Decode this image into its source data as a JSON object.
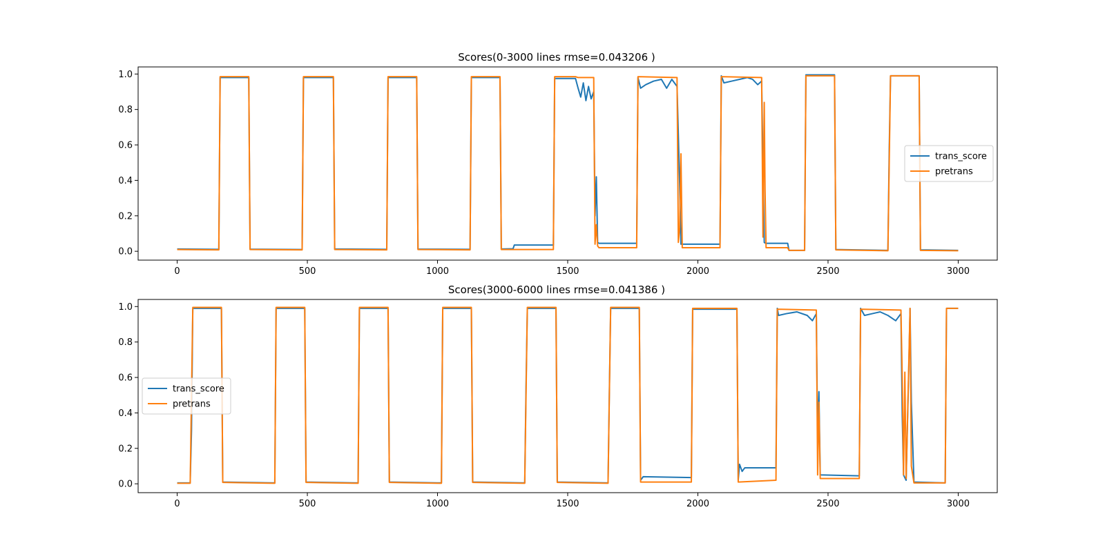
{
  "chart_data": [
    {
      "type": "line",
      "title": "Scores(0-3000 lines rmse=0.043206 )",
      "xlim": [
        -150,
        3150
      ],
      "ylim": [
        -0.05,
        1.04
      ],
      "xticks": [
        0,
        500,
        1000,
        1500,
        2000,
        2500,
        3000
      ],
      "yticks": [
        0.0,
        0.2,
        0.4,
        0.6,
        0.8,
        1.0
      ],
      "ytick_labels": [
        "0.0",
        "0.2",
        "0.4",
        "0.6",
        "0.8",
        "1.0"
      ],
      "legend_position": "center-right",
      "series": [
        {
          "name": "trans_score",
          "color": "#1f77b4",
          "points": [
            [
              0,
              0.013
            ],
            [
              160,
              0.011
            ],
            [
              165,
              0.98
            ],
            [
              275,
              0.98
            ],
            [
              280,
              0.012
            ],
            [
              480,
              0.01
            ],
            [
              485,
              0.98
            ],
            [
              600,
              0.98
            ],
            [
              605,
              0.013
            ],
            [
              805,
              0.011
            ],
            [
              810,
              0.98
            ],
            [
              920,
              0.98
            ],
            [
              925,
              0.012
            ],
            [
              1125,
              0.011
            ],
            [
              1130,
              0.98
            ],
            [
              1240,
              0.98
            ],
            [
              1245,
              0.013
            ],
            [
              1290,
              0.014
            ],
            [
              1295,
              0.035
            ],
            [
              1445,
              0.035
            ],
            [
              1450,
              0.975
            ],
            [
              1530,
              0.975
            ],
            [
              1540,
              0.92
            ],
            [
              1550,
              0.87
            ],
            [
              1560,
              0.95
            ],
            [
              1570,
              0.85
            ],
            [
              1580,
              0.93
            ],
            [
              1590,
              0.86
            ],
            [
              1600,
              0.9
            ],
            [
              1605,
              0.2
            ],
            [
              1610,
              0.42
            ],
            [
              1615,
              0.05
            ],
            [
              1620,
              0.045
            ],
            [
              1765,
              0.045
            ],
            [
              1770,
              0.98
            ],
            [
              1780,
              0.92
            ],
            [
              1800,
              0.94
            ],
            [
              1830,
              0.96
            ],
            [
              1860,
              0.97
            ],
            [
              1880,
              0.92
            ],
            [
              1900,
              0.97
            ],
            [
              1920,
              0.93
            ],
            [
              1930,
              0.38
            ],
            [
              1935,
              0.04
            ],
            [
              2085,
              0.04
            ],
            [
              2090,
              0.99
            ],
            [
              2100,
              0.95
            ],
            [
              2130,
              0.96
            ],
            [
              2160,
              0.97
            ],
            [
              2190,
              0.98
            ],
            [
              2210,
              0.97
            ],
            [
              2230,
              0.94
            ],
            [
              2245,
              0.96
            ],
            [
              2250,
              0.48
            ],
            [
              2255,
              0.05
            ],
            [
              2260,
              0.045
            ],
            [
              2345,
              0.045
            ],
            [
              2350,
              0.005
            ],
            [
              2410,
              0.005
            ],
            [
              2415,
              0.995
            ],
            [
              2525,
              0.995
            ],
            [
              2530,
              0.01
            ],
            [
              2730,
              0.005
            ],
            [
              2735,
              0.57
            ],
            [
              2740,
              0.99
            ],
            [
              2850,
              0.99
            ],
            [
              2855,
              0.008
            ],
            [
              3000,
              0.005
            ]
          ]
        },
        {
          "name": "pretrans",
          "color": "#ff7f0e",
          "points": [
            [
              0,
              0.01
            ],
            [
              160,
              0.008
            ],
            [
              165,
              0.985
            ],
            [
              275,
              0.985
            ],
            [
              280,
              0.01
            ],
            [
              480,
              0.008
            ],
            [
              485,
              0.985
            ],
            [
              600,
              0.985
            ],
            [
              605,
              0.01
            ],
            [
              805,
              0.008
            ],
            [
              810,
              0.985
            ],
            [
              920,
              0.985
            ],
            [
              925,
              0.01
            ],
            [
              1125,
              0.008
            ],
            [
              1130,
              0.985
            ],
            [
              1240,
              0.985
            ],
            [
              1245,
              0.01
            ],
            [
              1445,
              0.01
            ],
            [
              1450,
              0.985
            ],
            [
              1530,
              0.985
            ],
            [
              1540,
              0.98
            ],
            [
              1600,
              0.98
            ],
            [
              1605,
              0.04
            ],
            [
              1610,
              0.15
            ],
            [
              1615,
              0.03
            ],
            [
              1620,
              0.02
            ],
            [
              1765,
              0.02
            ],
            [
              1770,
              0.985
            ],
            [
              1920,
              0.98
            ],
            [
              1925,
              0.05
            ],
            [
              1930,
              0.13
            ],
            [
              1935,
              0.55
            ],
            [
              1940,
              0.02
            ],
            [
              2085,
              0.02
            ],
            [
              2090,
              0.985
            ],
            [
              2245,
              0.98
            ],
            [
              2250,
              0.08
            ],
            [
              2255,
              0.84
            ],
            [
              2258,
              0.35
            ],
            [
              2262,
              0.02
            ],
            [
              2345,
              0.02
            ],
            [
              2350,
              0.005
            ],
            [
              2410,
              0.005
            ],
            [
              2415,
              0.99
            ],
            [
              2525,
              0.99
            ],
            [
              2530,
              0.008
            ],
            [
              2730,
              0.003
            ],
            [
              2740,
              0.99
            ],
            [
              2850,
              0.99
            ],
            [
              2855,
              0.005
            ],
            [
              3000,
              0.003
            ]
          ]
        }
      ]
    },
    {
      "type": "line",
      "title": "Scores(3000-6000 lines rmse=0.041386 )",
      "xlim": [
        -150,
        3150
      ],
      "ylim": [
        -0.05,
        1.04
      ],
      "xticks": [
        0,
        500,
        1000,
        1500,
        2000,
        2500,
        3000
      ],
      "yticks": [
        0.0,
        0.2,
        0.4,
        0.6,
        0.8,
        1.0
      ],
      "ytick_labels": [
        "0.0",
        "0.2",
        "0.4",
        "0.6",
        "0.8",
        "1.0"
      ],
      "legend_position": "center-left",
      "series": [
        {
          "name": "trans_score",
          "color": "#1f77b4",
          "points": [
            [
              0,
              0.005
            ],
            [
              50,
              0.005
            ],
            [
              55,
              0.3
            ],
            [
              60,
              0.99
            ],
            [
              170,
              0.99
            ],
            [
              175,
              0.01
            ],
            [
              375,
              0.005
            ],
            [
              380,
              0.99
            ],
            [
              490,
              0.99
            ],
            [
              495,
              0.01
            ],
            [
              695,
              0.005
            ],
            [
              700,
              0.99
            ],
            [
              810,
              0.99
            ],
            [
              815,
              0.01
            ],
            [
              1015,
              0.005
            ],
            [
              1020,
              0.99
            ],
            [
              1130,
              0.99
            ],
            [
              1135,
              0.01
            ],
            [
              1335,
              0.005
            ],
            [
              1340,
              0.55
            ],
            [
              1345,
              0.99
            ],
            [
              1455,
              0.99
            ],
            [
              1460,
              0.01
            ],
            [
              1655,
              0.005
            ],
            [
              1660,
              0.52
            ],
            [
              1665,
              0.99
            ],
            [
              1775,
              0.99
            ],
            [
              1780,
              0.02
            ],
            [
              1790,
              0.04
            ],
            [
              1975,
              0.035
            ],
            [
              1980,
              0.985
            ],
            [
              2150,
              0.985
            ],
            [
              2155,
              0.02
            ],
            [
              2160,
              0.11
            ],
            [
              2170,
              0.07
            ],
            [
              2180,
              0.09
            ],
            [
              2300,
              0.09
            ],
            [
              2305,
              0.99
            ],
            [
              2310,
              0.95
            ],
            [
              2340,
              0.96
            ],
            [
              2380,
              0.97
            ],
            [
              2420,
              0.95
            ],
            [
              2440,
              0.92
            ],
            [
              2455,
              0.96
            ],
            [
              2460,
              0.23
            ],
            [
              2465,
              0.52
            ],
            [
              2470,
              0.05
            ],
            [
              2620,
              0.045
            ],
            [
              2625,
              0.99
            ],
            [
              2640,
              0.95
            ],
            [
              2670,
              0.96
            ],
            [
              2700,
              0.97
            ],
            [
              2730,
              0.95
            ],
            [
              2760,
              0.92
            ],
            [
              2780,
              0.96
            ],
            [
              2785,
              0.38
            ],
            [
              2790,
              0.05
            ],
            [
              2800,
              0.02
            ],
            [
              2810,
              0.64
            ],
            [
              2815,
              0.99
            ],
            [
              2820,
              0.46
            ],
            [
              2830,
              0.01
            ],
            [
              2950,
              0.005
            ],
            [
              2955,
              0.99
            ],
            [
              3000,
              0.99
            ]
          ]
        },
        {
          "name": "pretrans",
          "color": "#ff7f0e",
          "points": [
            [
              0,
              0.003
            ],
            [
              50,
              0.003
            ],
            [
              60,
              0.995
            ],
            [
              170,
              0.995
            ],
            [
              175,
              0.008
            ],
            [
              375,
              0.003
            ],
            [
              380,
              0.995
            ],
            [
              490,
              0.995
            ],
            [
              495,
              0.008
            ],
            [
              695,
              0.003
            ],
            [
              700,
              0.995
            ],
            [
              810,
              0.995
            ],
            [
              815,
              0.008
            ],
            [
              1015,
              0.003
            ],
            [
              1020,
              0.995
            ],
            [
              1130,
              0.995
            ],
            [
              1135,
              0.008
            ],
            [
              1335,
              0.003
            ],
            [
              1345,
              0.995
            ],
            [
              1455,
              0.995
            ],
            [
              1460,
              0.008
            ],
            [
              1655,
              0.003
            ],
            [
              1665,
              0.995
            ],
            [
              1775,
              0.995
            ],
            [
              1780,
              0.01
            ],
            [
              1975,
              0.01
            ],
            [
              1980,
              0.99
            ],
            [
              2150,
              0.99
            ],
            [
              2155,
              0.01
            ],
            [
              2300,
              0.02
            ],
            [
              2305,
              0.985
            ],
            [
              2455,
              0.98
            ],
            [
              2460,
              0.05
            ],
            [
              2465,
              0.46
            ],
            [
              2470,
              0.03
            ],
            [
              2620,
              0.03
            ],
            [
              2625,
              0.985
            ],
            [
              2780,
              0.98
            ],
            [
              2785,
              0.6
            ],
            [
              2790,
              0.05
            ],
            [
              2795,
              0.63
            ],
            [
              2800,
              0.03
            ],
            [
              2815,
              0.99
            ],
            [
              2820,
              0.1
            ],
            [
              2830,
              0.005
            ],
            [
              2950,
              0.005
            ],
            [
              2955,
              0.99
            ],
            [
              3000,
              0.99
            ]
          ]
        }
      ]
    }
  ]
}
